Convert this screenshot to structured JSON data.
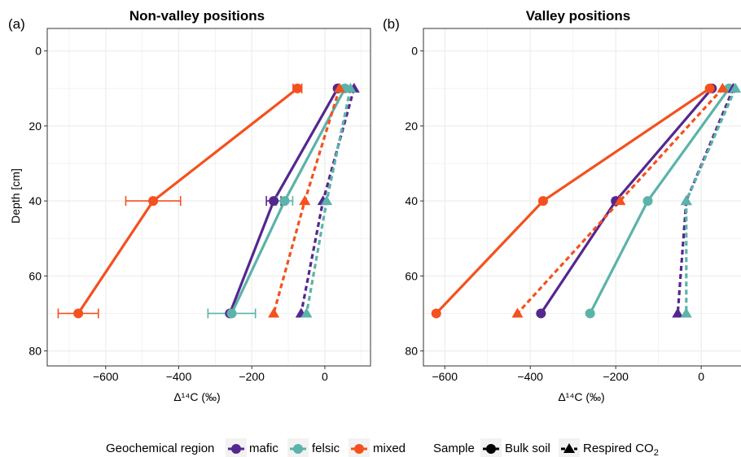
{
  "colors": {
    "mafic": "#54278f",
    "felsic": "#5bb3a9",
    "mixed": "#f4511e",
    "panel_border": "#333333",
    "grid": "#ebebeb",
    "text": "#000000"
  },
  "legend": {
    "region_title": "Geochemical region",
    "region_items": [
      "mafic",
      "felsic",
      "mixed"
    ],
    "sample_title": "Sample",
    "sample_bulk": "Bulk soil",
    "sample_respired": "Respired CO",
    "sample_respired_sub": "2"
  },
  "chart_data": [
    {
      "type": "line",
      "panel_tag": "(a)",
      "title": "Non-valley positions",
      "xlabel": "Δ¹⁴C (‰)",
      "ylabel": "Depth [cm]",
      "xlim": [
        -760,
        125
      ],
      "ylim": [
        84,
        -6
      ],
      "xticks": [
        -600,
        -400,
        -200,
        0
      ],
      "yticks": [
        0,
        20,
        40,
        60,
        80
      ],
      "grid": true,
      "y_reversed": true,
      "series": [
        {
          "region": "mafic",
          "sample": "Bulk soil",
          "x": [
            35,
            -140,
            -260
          ],
          "depth": [
            10,
            40,
            70
          ],
          "xerr": [
            0,
            20,
            0
          ]
        },
        {
          "region": "felsic",
          "sample": "Bulk soil",
          "x": [
            55,
            -110,
            -255
          ],
          "depth": [
            10,
            40,
            70
          ],
          "xerr": [
            0,
            22,
            65
          ]
        },
        {
          "region": "mixed",
          "sample": "Bulk soil",
          "x": [
            -75,
            -470,
            -675
          ],
          "depth": [
            10,
            40,
            70
          ],
          "xerr": [
            12,
            75,
            55
          ]
        },
        {
          "region": "mafic",
          "sample": "Respired CO2",
          "x": [
            80,
            -5,
            -65
          ],
          "depth": [
            10,
            40,
            70
          ],
          "xerr": [
            0,
            0,
            0
          ]
        },
        {
          "region": "felsic",
          "sample": "Respired CO2",
          "x": [
            70,
            5,
            -50
          ],
          "depth": [
            10,
            40,
            70
          ],
          "xerr": [
            0,
            0,
            0
          ]
        },
        {
          "region": "mixed",
          "sample": "Respired CO2",
          "x": [
            40,
            -55,
            -140
          ],
          "depth": [
            10,
            40,
            70
          ],
          "xerr": [
            0,
            0,
            0
          ]
        }
      ]
    },
    {
      "type": "line",
      "panel_tag": "(b)",
      "title": "Valley positions",
      "xlabel": "Δ¹⁴C (‰)",
      "ylabel": "",
      "xlim": [
        -650,
        95
      ],
      "ylim": [
        84,
        -6
      ],
      "xticks": [
        -600,
        -400,
        -200,
        0
      ],
      "yticks": [
        0,
        20,
        40,
        60,
        80
      ],
      "grid": true,
      "y_reversed": true,
      "series": [
        {
          "region": "mafic",
          "sample": "Bulk soil",
          "x": [
            25,
            -200,
            -375
          ],
          "depth": [
            10,
            40,
            70
          ],
          "xerr": [
            0,
            0,
            0
          ]
        },
        {
          "region": "felsic",
          "sample": "Bulk soil",
          "x": [
            65,
            -125,
            -260
          ],
          "depth": [
            10,
            40,
            70
          ],
          "xerr": [
            0,
            0,
            0
          ]
        },
        {
          "region": "mixed",
          "sample": "Bulk soil",
          "x": [
            20,
            -370,
            -620
          ],
          "depth": [
            10,
            40,
            70
          ],
          "xerr": [
            0,
            0,
            0
          ]
        },
        {
          "region": "mafic",
          "sample": "Respired CO2",
          "x": [
            75,
            -35,
            -55
          ],
          "depth": [
            10,
            40,
            70
          ],
          "xerr": [
            0,
            0,
            0
          ]
        },
        {
          "region": "felsic",
          "sample": "Respired CO2",
          "x": [
            80,
            -35,
            -35
          ],
          "depth": [
            10,
            40,
            70
          ],
          "xerr": [
            0,
            0,
            0
          ]
        },
        {
          "region": "mixed",
          "sample": "Respired CO2",
          "x": [
            50,
            -190,
            -430
          ],
          "depth": [
            10,
            40,
            70
          ],
          "xerr": [
            0,
            0,
            0
          ]
        }
      ]
    }
  ]
}
